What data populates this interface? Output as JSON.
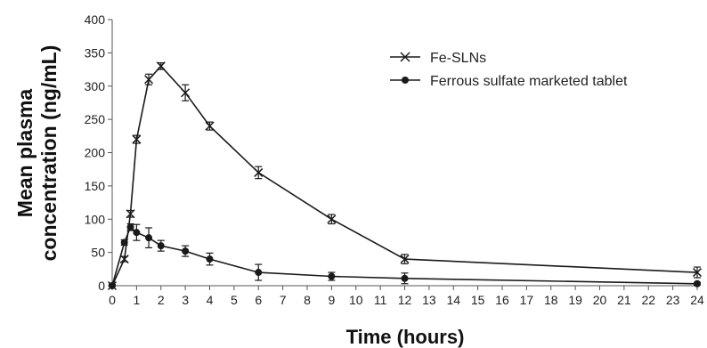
{
  "chart_data": {
    "type": "line",
    "title": "",
    "xlabel": "Time (hours)",
    "ylabel_lines": [
      "Mean plasma",
      "concentration (ng/mL)"
    ],
    "xlim": [
      0,
      24
    ],
    "ylim": [
      0,
      400
    ],
    "x_ticks": [
      0,
      1,
      2,
      3,
      4,
      5,
      6,
      7,
      8,
      9,
      10,
      11,
      12,
      13,
      14,
      15,
      16,
      17,
      18,
      19,
      20,
      21,
      22,
      23,
      24
    ],
    "y_ticks": [
      0,
      50,
      100,
      150,
      200,
      250,
      300,
      350,
      400
    ],
    "grid": false,
    "legend_position": "top-right",
    "series": [
      {
        "name": "Fe-SLNs",
        "marker": "x",
        "color": "#1a1a1a",
        "x": [
          0,
          0.5,
          0.75,
          1,
          1.5,
          2,
          3,
          4,
          6,
          9,
          12,
          24
        ],
        "y": [
          0,
          40,
          108,
          220,
          310,
          330,
          290,
          240,
          170,
          100,
          40,
          20
        ],
        "err": [
          2,
          4,
          5,
          6,
          8,
          5,
          12,
          6,
          9,
          7,
          7,
          8
        ]
      },
      {
        "name": "Ferrous sulfate marketed tablet",
        "marker": "circle",
        "color": "#1a1a1a",
        "x": [
          0,
          0.5,
          0.75,
          1,
          1.5,
          2,
          3,
          4,
          6,
          9,
          12,
          24
        ],
        "y": [
          0,
          65,
          88,
          80,
          72,
          60,
          52,
          40,
          20,
          14,
          11,
          3
        ],
        "err": [
          2,
          4,
          5,
          12,
          15,
          8,
          8,
          9,
          12,
          6,
          8,
          2
        ]
      }
    ]
  }
}
